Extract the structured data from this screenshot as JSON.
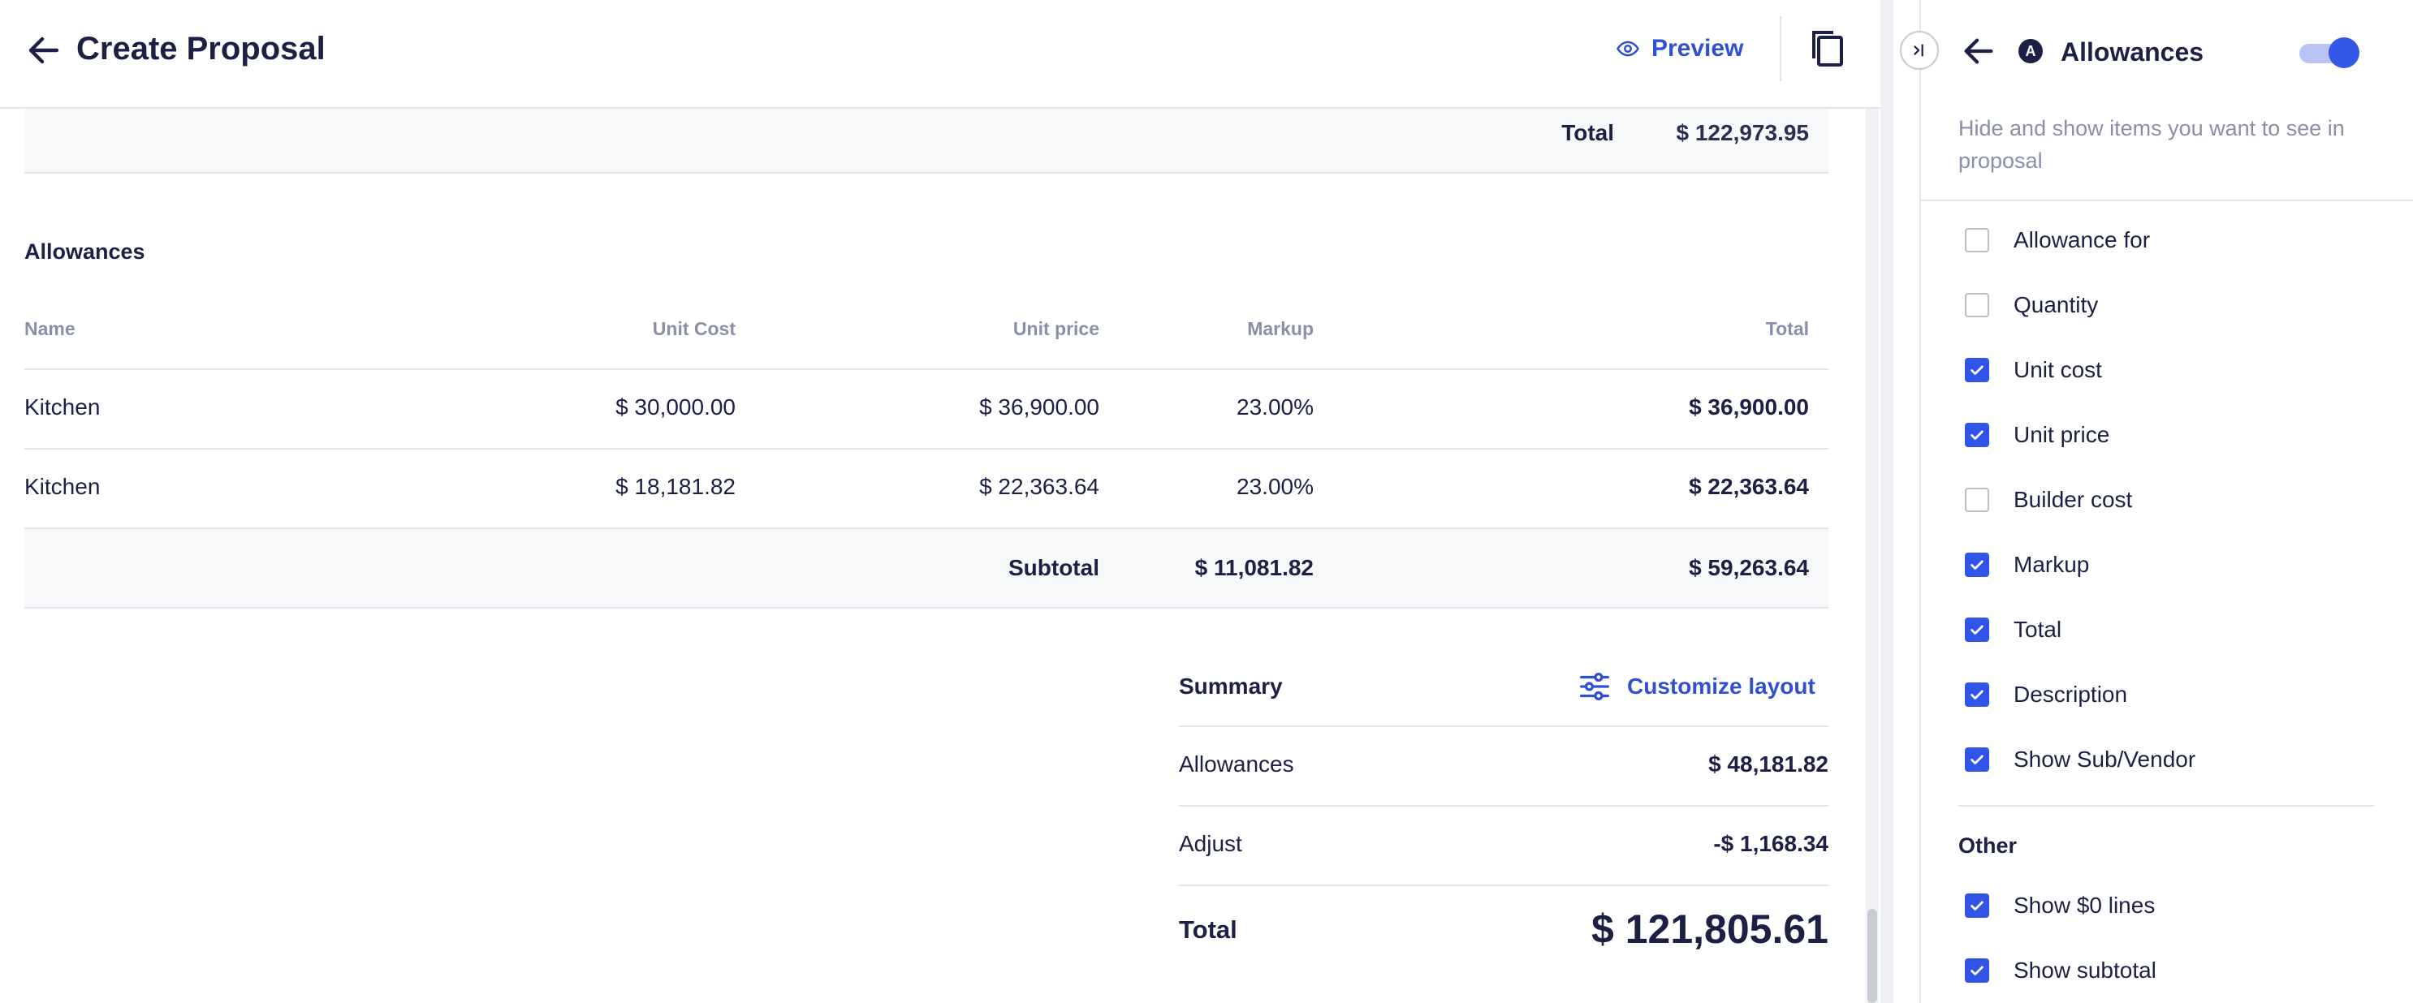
{
  "header": {
    "title": "Create Proposal",
    "preview_label": "Preview"
  },
  "top_total": {
    "label": "Total",
    "value": "$ 122,973.95"
  },
  "allowances_section": {
    "title": "Allowances",
    "columns": [
      "Name",
      "Unit Cost",
      "Unit price",
      "Markup",
      "Total"
    ],
    "rows": [
      {
        "name": "Kitchen",
        "unit_cost": "$ 30,000.00",
        "unit_price": "$ 36,900.00",
        "markup": "23.00%",
        "total": "$ 36,900.00"
      },
      {
        "name": "Kitchen",
        "unit_cost": "$ 18,181.82",
        "unit_price": "$ 22,363.64",
        "markup": "23.00%",
        "total": "$ 22,363.64"
      }
    ],
    "subtotal": {
      "label": "Subtotal",
      "markup": "$ 11,081.82",
      "total": "$ 59,263.64"
    }
  },
  "summary": {
    "title": "Summary",
    "customize_label": "Customize layout",
    "lines": [
      {
        "label": "Allowances",
        "value": "$ 48,181.82"
      },
      {
        "label": "Adjust",
        "value": "-$ 1,168.34"
      }
    ],
    "total_label": "Total",
    "total_value": "$ 121,805.61"
  },
  "panel": {
    "badge": "A",
    "title": "Allowances",
    "toggle_on": true,
    "description": "Hide and show items you want to see in proposal",
    "items": [
      {
        "label": "Allowance for",
        "checked": false
      },
      {
        "label": "Quantity",
        "checked": false
      },
      {
        "label": "Unit cost",
        "checked": true
      },
      {
        "label": "Unit price",
        "checked": true
      },
      {
        "label": "Builder cost",
        "checked": false
      },
      {
        "label": "Markup",
        "checked": true
      },
      {
        "label": "Total",
        "checked": true
      },
      {
        "label": "Description",
        "checked": true
      },
      {
        "label": "Show Sub/Vendor",
        "checked": true
      }
    ],
    "other_title": "Other",
    "other_items": [
      {
        "label": "Show $0 lines",
        "checked": true
      },
      {
        "label": "Show subtotal",
        "checked": true
      }
    ]
  },
  "colors": {
    "accent": "#3054e6",
    "text": "#1d2045",
    "muted": "#8a8fa8",
    "border": "#e3e5ec"
  }
}
